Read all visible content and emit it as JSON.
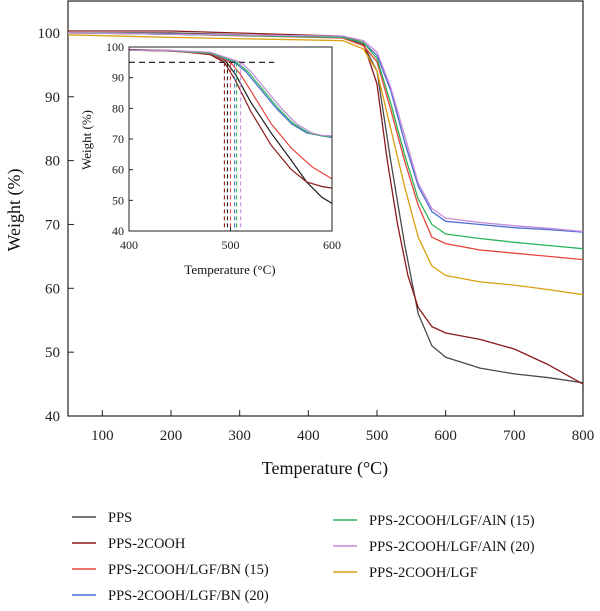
{
  "chart_data": {
    "type": "line",
    "title": "",
    "xlabel": "Temperature (°C)",
    "ylabel": "Weight (%)",
    "xlim": [
      50,
      800
    ],
    "ylim": [
      40,
      105
    ],
    "x_ticks": [
      "100",
      "200",
      "300",
      "400",
      "500",
      "600",
      "700",
      "800"
    ],
    "y_ticks": [
      "40",
      "50",
      "60",
      "70",
      "80",
      "90",
      "100"
    ],
    "grid": false,
    "legend_position": "bottom",
    "series": [
      {
        "name": "PPS",
        "color": "#4a4a4a",
        "points": [
          [
            50,
            100
          ],
          [
            200,
            100
          ],
          [
            450,
            99.3
          ],
          [
            480,
            98.2
          ],
          [
            500,
            94
          ],
          [
            520,
            80
          ],
          [
            540,
            67
          ],
          [
            560,
            56
          ],
          [
            580,
            51
          ],
          [
            600,
            49.2
          ],
          [
            650,
            47.5
          ],
          [
            700,
            46.6
          ],
          [
            750,
            46
          ],
          [
            800,
            45.2
          ]
        ]
      },
      {
        "name": "PPS-2COOH",
        "color": "#8b1a1a",
        "points": [
          [
            50,
            100.3
          ],
          [
            200,
            100.3
          ],
          [
            450,
            99.5
          ],
          [
            480,
            98.5
          ],
          [
            500,
            92
          ],
          [
            515,
            80
          ],
          [
            530,
            70
          ],
          [
            545,
            62
          ],
          [
            560,
            57
          ],
          [
            580,
            54
          ],
          [
            600,
            53
          ],
          [
            650,
            52
          ],
          [
            700,
            50.5
          ],
          [
            750,
            48
          ],
          [
            800,
            45
          ]
        ]
      },
      {
        "name": "PPS-2COOH/LGF/BN (15)",
        "color": "#e8433b",
        "points": [
          [
            50,
            100
          ],
          [
            200,
            99.8
          ],
          [
            450,
            99.2
          ],
          [
            480,
            98
          ],
          [
            500,
            95.5
          ],
          [
            520,
            88
          ],
          [
            540,
            80
          ],
          [
            560,
            73
          ],
          [
            580,
            68
          ],
          [
            600,
            67
          ],
          [
            650,
            66
          ],
          [
            700,
            65.5
          ],
          [
            750,
            65
          ],
          [
            800,
            64.5
          ]
        ]
      },
      {
        "name": "PPS-2COOH/LGF/BN (20)",
        "color": "#4a6fd3",
        "points": [
          [
            50,
            100
          ],
          [
            200,
            99.8
          ],
          [
            450,
            99.3
          ],
          [
            480,
            98.5
          ],
          [
            500,
            96.5
          ],
          [
            520,
            91
          ],
          [
            540,
            83
          ],
          [
            560,
            76
          ],
          [
            580,
            72
          ],
          [
            600,
            70.5
          ],
          [
            650,
            70
          ],
          [
            700,
            69.5
          ],
          [
            750,
            69.2
          ],
          [
            800,
            68.8
          ]
        ]
      },
      {
        "name": "PPS-2COOH/LGF/AlN (15)",
        "color": "#2bb55a",
        "points": [
          [
            50,
            100
          ],
          [
            200,
            99.8
          ],
          [
            450,
            99.3
          ],
          [
            480,
            98.5
          ],
          [
            500,
            96
          ],
          [
            520,
            89
          ],
          [
            540,
            81
          ],
          [
            560,
            74
          ],
          [
            580,
            70
          ],
          [
            600,
            68.5
          ],
          [
            650,
            67.8
          ],
          [
            700,
            67.2
          ],
          [
            750,
            66.7
          ],
          [
            800,
            66.2
          ]
        ]
      },
      {
        "name": "PPS-2COOH/LGF/AlN (20)",
        "color": "#c48ad8",
        "points": [
          [
            50,
            100
          ],
          [
            200,
            99.8
          ],
          [
            450,
            99.5
          ],
          [
            480,
            98.8
          ],
          [
            500,
            97
          ],
          [
            520,
            91.5
          ],
          [
            540,
            84
          ],
          [
            560,
            76.5
          ],
          [
            580,
            72.5
          ],
          [
            600,
            71
          ],
          [
            650,
            70.3
          ],
          [
            700,
            69.8
          ],
          [
            750,
            69.4
          ],
          [
            800,
            68.9
          ]
        ]
      },
      {
        "name": "PPS-2COOH/LGF",
        "color": "#d9a010",
        "points": [
          [
            50,
            99.7
          ],
          [
            200,
            99.3
          ],
          [
            450,
            98.8
          ],
          [
            480,
            97.5
          ],
          [
            500,
            94
          ],
          [
            520,
            85
          ],
          [
            540,
            76
          ],
          [
            560,
            68
          ],
          [
            580,
            63.5
          ],
          [
            600,
            62
          ],
          [
            650,
            61
          ],
          [
            700,
            60.5
          ],
          [
            750,
            59.8
          ],
          [
            800,
            59
          ]
        ]
      }
    ],
    "inset": {
      "xlabel": "Temperature (°C)",
      "ylabel": "Weight (%)",
      "xlim": [
        400,
        600
      ],
      "ylim": [
        40,
        100
      ],
      "x_ticks": [
        "400",
        "500",
        "600"
      ],
      "y_ticks": [
        "40",
        "50",
        "60",
        "70",
        "80",
        "90",
        "100"
      ],
      "threshold_y": 95,
      "series": [
        {
          "name": "PPS",
          "color": "#1e1e1e",
          "t95": 497,
          "points": [
            [
              400,
              99
            ],
            [
              440,
              98.7
            ],
            [
              480,
              97.8
            ],
            [
              495,
              95.5
            ],
            [
              505,
              91
            ],
            [
              520,
              82
            ],
            [
              540,
              72
            ],
            [
              560,
              63
            ],
            [
              575,
              56
            ],
            [
              590,
              51
            ],
            [
              600,
              49
            ]
          ]
        },
        {
          "name": "PPS-2COOH",
          "color": "#8b1a1a",
          "t95": 494,
          "points": [
            [
              400,
              99.2
            ],
            [
              440,
              98.9
            ],
            [
              480,
              97.5
            ],
            [
              494,
              95
            ],
            [
              505,
              89
            ],
            [
              520,
              79
            ],
            [
              540,
              68
            ],
            [
              560,
              60
            ],
            [
              575,
              56
            ],
            [
              590,
              54.5
            ],
            [
              600,
              54
            ]
          ]
        },
        {
          "name": "PPS-2COOH/LGF/BN (15)",
          "color": "#e8433b",
          "t95": 500,
          "points": [
            [
              400,
              99
            ],
            [
              440,
              98.7
            ],
            [
              480,
              97.8
            ],
            [
              500,
              95
            ],
            [
              510,
              91
            ],
            [
              525,
              83
            ],
            [
              540,
              75
            ],
            [
              560,
              67
            ],
            [
              580,
              61
            ],
            [
              600,
              57
            ]
          ]
        },
        {
          "name": "PPS-2COOH/LGF/BN (20)",
          "color": "#4a6fd3",
          "t95": 504,
          "points": [
            [
              400,
              99
            ],
            [
              440,
              98.8
            ],
            [
              480,
              98
            ],
            [
              504,
              95
            ],
            [
              515,
              92
            ],
            [
              530,
              86
            ],
            [
              545,
              80
            ],
            [
              560,
              75
            ],
            [
              575,
              72
            ],
            [
              590,
              71
            ],
            [
              600,
              70.5
            ]
          ]
        },
        {
          "name": "PPS-2COOH/LGF/AlN (15)",
          "color": "#2bb55a",
          "t95": 506,
          "points": [
            [
              400,
              99
            ],
            [
              440,
              98.8
            ],
            [
              480,
              98
            ],
            [
              506,
              95
            ],
            [
              517,
              92
            ],
            [
              532,
              86
            ],
            [
              547,
              80
            ],
            [
              562,
              75
            ],
            [
              577,
              72
            ],
            [
              590,
              71
            ],
            [
              600,
              70.8
            ]
          ]
        },
        {
          "name": "PPS-2COOH/LGF/AlN (20)",
          "color": "#c48ad8",
          "t95": 510,
          "points": [
            [
              400,
              99
            ],
            [
              440,
              98.9
            ],
            [
              480,
              98.3
            ],
            [
              510,
              95
            ],
            [
              520,
              92
            ],
            [
              535,
              86
            ],
            [
              550,
              80
            ],
            [
              565,
              75
            ],
            [
              580,
              72
            ],
            [
              590,
              71.2
            ],
            [
              600,
              71
            ]
          ]
        }
      ]
    }
  }
}
